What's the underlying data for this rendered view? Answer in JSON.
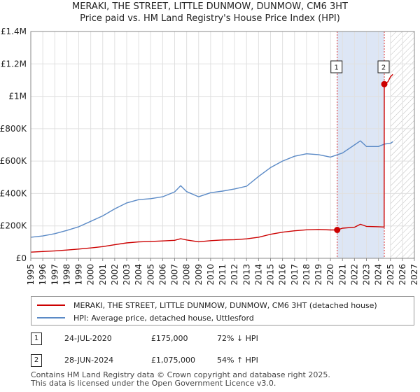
{
  "title_line1": "MERAKI, THE STREET, LITTLE DUNMOW, DUNMOW, CM6 3HT",
  "title_line2": "Price paid vs. HM Land Registry's House Price Index (HPI)",
  "chart_data": {
    "type": "line",
    "ylim": [
      0,
      1400000
    ],
    "xlim": [
      1995,
      2027
    ],
    "ytick_labels": [
      "£0",
      "£200K",
      "£400K",
      "£600K",
      "£800K",
      "£1M",
      "£1.2M",
      "£1.4M"
    ],
    "ytick_values": [
      0,
      200000,
      400000,
      600000,
      800000,
      1000000,
      1200000,
      1400000
    ],
    "xtick_labels": [
      "1995",
      "1996",
      "1997",
      "1998",
      "1999",
      "2000",
      "2001",
      "2002",
      "2003",
      "2004",
      "2005",
      "2006",
      "2007",
      "2008",
      "2009",
      "2010",
      "2011",
      "2012",
      "2013",
      "2014",
      "2015",
      "2016",
      "2017",
      "2018",
      "2019",
      "2020",
      "2021",
      "2022",
      "2023",
      "2024",
      "2025",
      "2026",
      "2027"
    ],
    "shaded_region": {
      "from": 2020.56,
      "to": 2024.49,
      "color": "#dde6f5"
    },
    "hatched_from": 2025.0,
    "series": [
      {
        "name": "MERAKI, THE STREET, LITTLE DUNMOW, DUNMOW, CM6 3HT (detached house)",
        "color": "#cc0000",
        "x": [
          1995,
          1996,
          1997,
          1998,
          1999,
          2000,
          2001,
          2002,
          2003,
          2004,
          2005,
          2006,
          2007,
          2007.5,
          2008,
          2009,
          2010,
          2011,
          2012,
          2013,
          2014,
          2015,
          2016,
          2017,
          2018,
          2019,
          2020,
          2020.56,
          2021,
          2022,
          2022.5,
          2023,
          2024,
          2024.48,
          2024.49,
          2024.6,
          2024.8,
          2025,
          2025.2
        ],
        "y": [
          38000,
          42000,
          46000,
          51000,
          57000,
          64000,
          72000,
          84000,
          95000,
          101000,
          104000,
          107000,
          111000,
          121000,
          113000,
          102000,
          109000,
          113000,
          115000,
          120000,
          130000,
          148000,
          161000,
          170000,
          176000,
          178000,
          175000,
          175000,
          186000,
          192000,
          210000,
          197000,
          195000,
          193000,
          1075000,
          1080000,
          1090000,
          1120000,
          1135000
        ]
      },
      {
        "name": "HPI: Average price, detached house, Uttlesford",
        "color": "#5b8ac6",
        "x": [
          1995,
          1996,
          1997,
          1998,
          1999,
          2000,
          2001,
          2002,
          2003,
          2004,
          2005,
          2006,
          2007,
          2007.5,
          2008,
          2009,
          2010,
          2011,
          2012,
          2013,
          2014,
          2015,
          2016,
          2017,
          2018,
          2019,
          2020,
          2021,
          2022,
          2022.5,
          2023,
          2024,
          2024.5,
          2025,
          2025.2
        ],
        "y": [
          130000,
          138000,
          152000,
          172000,
          195000,
          228000,
          262000,
          305000,
          342000,
          362000,
          368000,
          380000,
          410000,
          448000,
          412000,
          380000,
          405000,
          415000,
          428000,
          445000,
          505000,
          560000,
          600000,
          630000,
          645000,
          640000,
          625000,
          650000,
          700000,
          725000,
          690000,
          690000,
          705000,
          710000,
          720000
        ]
      }
    ],
    "annotations": [
      {
        "label": "1",
        "x": 2020.56,
        "y": 175000
      },
      {
        "label": "2",
        "x": 2024.49,
        "y": 1075000
      }
    ]
  },
  "legend": {
    "item1": "MERAKI, THE STREET, LITTLE DUNMOW, DUNMOW, CM6 3HT (detached house)",
    "item2": "HPI: Average price, detached house, Uttlesford",
    "color1": "#cc0000",
    "color2": "#5b8ac6"
  },
  "transactions": [
    {
      "num": "1",
      "date": "24-JUL-2020",
      "price": "£175,000",
      "hpi": "72% ↓ HPI"
    },
    {
      "num": "2",
      "date": "28-JUN-2024",
      "price": "£1,075,000",
      "hpi": "54% ↑ HPI"
    }
  ],
  "footer_line1": "Contains HM Land Registry data © Crown copyright and database right 2025.",
  "footer_line2": "This data is licensed under the Open Government Licence v3.0."
}
